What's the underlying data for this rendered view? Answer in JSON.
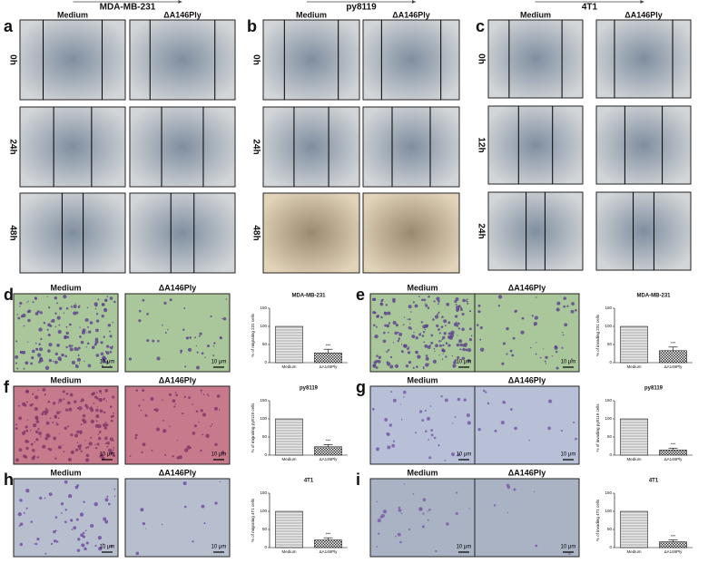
{
  "wound_panels": [
    {
      "letter": "a",
      "cell_line": "MDA-MB-231",
      "conditions": [
        "Medium",
        "ΔA146Ply"
      ],
      "times": [
        "0h",
        "24h",
        "48h"
      ]
    },
    {
      "letter": "b",
      "cell_line": "py8119",
      "conditions": [
        "Medium",
        "ΔA146Ply"
      ],
      "times": [
        "0h",
        "24h",
        "48h"
      ]
    },
    {
      "letter": "c",
      "cell_line": "4T1",
      "conditions": [
        "Medium",
        "ΔA146Ply"
      ],
      "times": [
        "0h",
        "12h",
        "24h"
      ]
    }
  ],
  "transwell_panels": [
    {
      "letter": "d",
      "conditions": [
        "Medium",
        "ΔA146Ply"
      ],
      "scale_bar": "10 μm",
      "chart": {
        "type": "bar",
        "title": "MDA-MB-231",
        "y_label": "% of migrating 231 cells",
        "categories": [
          "Medium",
          "ΔA146Ply"
        ],
        "values": [
          100,
          27
        ],
        "errors": [
          null,
          10
        ],
        "significance": "***",
        "ylim": [
          0,
          150
        ],
        "yticks": [
          0,
          50,
          100,
          150
        ]
      }
    },
    {
      "letter": "e",
      "conditions": [
        "Medium",
        "ΔA146Ply"
      ],
      "scale_bar": "10 μm",
      "chart": {
        "type": "bar",
        "title": "MDA-MB-231",
        "y_label": "% of invading 231 cells",
        "categories": [
          "Medium",
          "ΔA146Ply"
        ],
        "values": [
          100,
          33
        ],
        "errors": [
          null,
          10
        ],
        "significance": "***",
        "ylim": [
          0,
          150
        ],
        "yticks": [
          0,
          50,
          100,
          150
        ]
      }
    },
    {
      "letter": "f",
      "conditions": [
        "Medium",
        "ΔA146Ply"
      ],
      "scale_bar": "10 μm",
      "chart": {
        "type": "bar",
        "title": "py8119",
        "y_label": "% of migrating py8119 cells",
        "categories": [
          "Medium",
          "ΔA146Ply"
        ],
        "values": [
          100,
          23
        ],
        "errors": [
          null,
          6
        ],
        "significance": "***",
        "ylim": [
          0,
          150
        ],
        "yticks": [
          0,
          50,
          100,
          150
        ]
      }
    },
    {
      "letter": "g",
      "conditions": [
        "Medium",
        "ΔA146Ply"
      ],
      "scale_bar": "10 μm",
      "chart": {
        "type": "bar",
        "title": "py8119",
        "y_label": "% of invading py8119 cells",
        "categories": [
          "Medium",
          "ΔA146Ply"
        ],
        "values": [
          100,
          14
        ],
        "errors": [
          null,
          5
        ],
        "significance": "***",
        "ylim": [
          0,
          150
        ],
        "yticks": [
          0,
          50,
          100,
          150
        ]
      }
    },
    {
      "letter": "h",
      "conditions": [
        "Medium",
        "ΔA146Ply"
      ],
      "scale_bar": "10 μm",
      "chart": {
        "type": "bar",
        "title": "4T1",
        "y_label": "% of migrating 4T1 cells",
        "categories": [
          "Medium",
          "ΔA146Ply"
        ],
        "values": [
          100,
          21
        ],
        "errors": [
          null,
          6
        ],
        "significance": "***",
        "ylim": [
          0,
          150
        ],
        "yticks": [
          0,
          50,
          100,
          150
        ]
      }
    },
    {
      "letter": "i",
      "conditions": [
        "Medium",
        "ΔA146Ply"
      ],
      "scale_bar": "10 μm",
      "chart": {
        "type": "bar",
        "title": "4T1",
        "y_label": "% of invading 4T1 cells",
        "categories": [
          "Medium",
          "ΔA146Ply"
        ],
        "values": [
          100,
          16
        ],
        "errors": [
          null,
          5
        ],
        "significance": "***",
        "ylim": [
          0,
          150
        ],
        "yticks": [
          0,
          50,
          100,
          150
        ]
      }
    }
  ]
}
